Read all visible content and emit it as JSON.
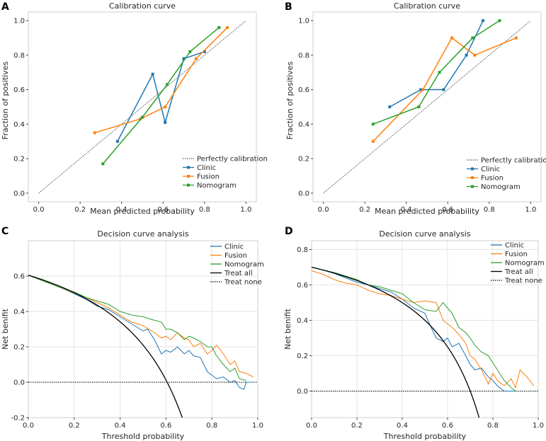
{
  "colors": {
    "clinic": "#1f77b4",
    "fusion": "#ff7f0e",
    "nomogram": "#2ca02c",
    "treat_all": "#000000",
    "treat_none": "#000000",
    "diagonal": "#555555",
    "grid": "#e5e5e5",
    "frame": "#cfcfcf"
  },
  "chart_data": [
    {
      "panel": "A",
      "type": "line",
      "title": "Calibration curve",
      "xlabel": "Mean predicted probability",
      "ylabel": "Fraction of positives",
      "xlim": [
        -0.05,
        1.05
      ],
      "ylim": [
        -0.05,
        1.05
      ],
      "xticks": [
        "0.0",
        "0.2",
        "0.4",
        "0.6",
        "0.8",
        "1.0"
      ],
      "yticks": [
        "0.0",
        "0.2",
        "0.4",
        "0.6",
        "0.8",
        "1.0"
      ],
      "grid": false,
      "legend_position": "bottom-right",
      "legend": [
        "Perfectly calibration",
        "Clinic",
        "Fusion",
        "Nomogram"
      ],
      "diagonal": {
        "name": "Perfectly calibration",
        "x": [
          0,
          1
        ],
        "y": [
          0,
          1
        ]
      },
      "series": [
        {
          "name": "Clinic",
          "key": "clinic",
          "x": [
            0.38,
            0.55,
            0.61,
            0.7,
            0.8
          ],
          "y": [
            0.3,
            0.69,
            0.41,
            0.78,
            0.82
          ]
        },
        {
          "name": "Fusion",
          "key": "fusion",
          "x": [
            0.27,
            0.49,
            0.61,
            0.76,
            0.91
          ],
          "y": [
            0.35,
            0.43,
            0.5,
            0.78,
            0.96
          ]
        },
        {
          "name": "Nomogram",
          "key": "nomogram",
          "x": [
            0.31,
            0.5,
            0.62,
            0.73,
            0.87
          ],
          "y": [
            0.17,
            0.44,
            0.63,
            0.82,
            0.96
          ]
        }
      ]
    },
    {
      "panel": "B",
      "type": "line",
      "title": "Calibration curve",
      "xlabel": "Mean predicted probability",
      "ylabel": "Fraction of positives",
      "xlim": [
        -0.05,
        1.05
      ],
      "ylim": [
        -0.05,
        1.05
      ],
      "xticks": [
        "0.0",
        "0.2",
        "0.4",
        "0.6",
        "0.8",
        "1.0"
      ],
      "yticks": [
        "0.0",
        "0.2",
        "0.4",
        "0.6",
        "0.8",
        "1.0"
      ],
      "grid": false,
      "legend_position": "bottom-right",
      "legend": [
        "Perfectly calibration",
        "Clinic",
        "Fusion",
        "Nomogram"
      ],
      "diagonal": {
        "name": "Perfectly calibration",
        "x": [
          0,
          1
        ],
        "y": [
          0,
          1
        ]
      },
      "series": [
        {
          "name": "Clinic",
          "key": "clinic",
          "x": [
            0.32,
            0.47,
            0.58,
            0.69,
            0.77
          ],
          "y": [
            0.5,
            0.6,
            0.6,
            0.8,
            1.0
          ]
        },
        {
          "name": "Fusion",
          "key": "fusion",
          "x": [
            0.24,
            0.48,
            0.62,
            0.73,
            0.93
          ],
          "y": [
            0.3,
            0.6,
            0.9,
            0.8,
            0.9
          ]
        },
        {
          "name": "Nomogram",
          "key": "nomogram",
          "x": [
            0.24,
            0.46,
            0.56,
            0.72,
            0.85
          ],
          "y": [
            0.4,
            0.5,
            0.7,
            0.9,
            1.0
          ]
        }
      ]
    },
    {
      "panel": "C",
      "type": "line",
      "title": "Decision curve analysis",
      "xlabel": "Threshold probability",
      "ylabel": "Net benifit",
      "xlim": [
        0,
        1
      ],
      "ylim": [
        -0.2,
        0.8
      ],
      "xticks": [
        "0.0",
        "0.2",
        "0.4",
        "0.6",
        "0.8",
        "1.0"
      ],
      "yticks": [
        "-0.2",
        "0.0",
        "0.2",
        "0.4",
        "0.6"
      ],
      "ytick_values": [
        -0.2,
        0,
        0.2,
        0.4,
        0.6
      ],
      "grid": true,
      "legend_position": "top-right",
      "legend": [
        "Clinic",
        "Fusion",
        "Nomogram",
        "Treat all",
        "Treat none"
      ],
      "prevalence": 0.605,
      "series": [
        {
          "name": "Clinic",
          "key": "clinic",
          "x": [
            0,
            0.05,
            0.1,
            0.15,
            0.2,
            0.25,
            0.3,
            0.35,
            0.4,
            0.45,
            0.5,
            0.52,
            0.55,
            0.58,
            0.6,
            0.62,
            0.65,
            0.68,
            0.7,
            0.72,
            0.75,
            0.78,
            0.8,
            0.82,
            0.85,
            0.88,
            0.9,
            0.92,
            0.94,
            0.95,
            0.97
          ],
          "y": [
            0.605,
            0.58,
            0.555,
            0.53,
            0.5,
            0.47,
            0.43,
            0.41,
            0.37,
            0.33,
            0.29,
            0.3,
            0.24,
            0.16,
            0.18,
            0.17,
            0.2,
            0.16,
            0.18,
            0.15,
            0.14,
            0.06,
            0.04,
            0.02,
            0.03,
            0.0,
            0.01,
            -0.03,
            -0.04,
            0.0,
            0.0
          ]
        },
        {
          "name": "Fusion",
          "key": "fusion",
          "x": [
            0,
            0.05,
            0.1,
            0.15,
            0.2,
            0.25,
            0.3,
            0.35,
            0.4,
            0.45,
            0.5,
            0.55,
            0.58,
            0.6,
            0.62,
            0.65,
            0.68,
            0.7,
            0.72,
            0.75,
            0.78,
            0.8,
            0.82,
            0.85,
            0.88,
            0.9,
            0.92,
            0.95,
            0.98
          ],
          "y": [
            0.605,
            0.58,
            0.555,
            0.53,
            0.505,
            0.48,
            0.45,
            0.42,
            0.38,
            0.34,
            0.32,
            0.28,
            0.25,
            0.26,
            0.24,
            0.28,
            0.25,
            0.24,
            0.2,
            0.22,
            0.16,
            0.18,
            0.21,
            0.16,
            0.1,
            0.12,
            0.06,
            0.05,
            0.03
          ]
        },
        {
          "name": "Nomogram",
          "key": "nomogram",
          "x": [
            0,
            0.05,
            0.1,
            0.15,
            0.2,
            0.25,
            0.3,
            0.35,
            0.4,
            0.45,
            0.5,
            0.55,
            0.58,
            0.6,
            0.62,
            0.65,
            0.68,
            0.7,
            0.72,
            0.75,
            0.78,
            0.8,
            0.82,
            0.85,
            0.88,
            0.9,
            0.92,
            0.95
          ],
          "y": [
            0.605,
            0.58,
            0.555,
            0.53,
            0.51,
            0.48,
            0.46,
            0.44,
            0.4,
            0.38,
            0.37,
            0.35,
            0.34,
            0.3,
            0.3,
            0.28,
            0.24,
            0.26,
            0.25,
            0.23,
            0.2,
            0.2,
            0.15,
            0.1,
            0.06,
            0.08,
            0.02,
            0.01
          ]
        }
      ]
    },
    {
      "panel": "D",
      "type": "line",
      "title": "Decision curve analysis",
      "xlabel": "Threshold probability",
      "ylabel": "Net benifit",
      "xlim": [
        0,
        1
      ],
      "ylim": [
        -0.15,
        0.85
      ],
      "xticks": [
        "0.0",
        "0.2",
        "0.4",
        "0.6",
        "0.8",
        "1.0"
      ],
      "yticks": [
        "0.0",
        "0.2",
        "0.4",
        "0.6",
        "0.8"
      ],
      "ytick_values": [
        0,
        0.2,
        0.4,
        0.6,
        0.8
      ],
      "grid": true,
      "legend_position": "top-right",
      "legend": [
        "Clinic",
        "Fusion",
        "Nomogram",
        "Treat all",
        "Treat none"
      ],
      "prevalence": 0.7,
      "series": [
        {
          "name": "Clinic",
          "key": "clinic",
          "x": [
            0,
            0.05,
            0.1,
            0.15,
            0.2,
            0.25,
            0.3,
            0.35,
            0.4,
            0.45,
            0.5,
            0.52,
            0.55,
            0.58,
            0.6,
            0.62,
            0.65,
            0.68,
            0.7,
            0.72,
            0.75,
            0.78,
            0.8,
            0.82,
            0.85,
            0.88,
            0.9
          ],
          "y": [
            0.7,
            0.685,
            0.665,
            0.64,
            0.615,
            0.6,
            0.58,
            0.56,
            0.52,
            0.47,
            0.44,
            0.38,
            0.3,
            0.28,
            0.3,
            0.25,
            0.27,
            0.2,
            0.15,
            0.12,
            0.13,
            0.08,
            0.06,
            0.03,
            0.0,
            0.0,
            0.0
          ]
        },
        {
          "name": "Fusion",
          "key": "fusion",
          "x": [
            0,
            0.05,
            0.1,
            0.15,
            0.2,
            0.25,
            0.3,
            0.35,
            0.4,
            0.45,
            0.5,
            0.55,
            0.58,
            0.6,
            0.62,
            0.65,
            0.68,
            0.7,
            0.72,
            0.75,
            0.78,
            0.8,
            0.82,
            0.85,
            0.88,
            0.9,
            0.92,
            0.95,
            0.98
          ],
          "y": [
            0.68,
            0.66,
            0.63,
            0.61,
            0.6,
            0.57,
            0.55,
            0.54,
            0.52,
            0.5,
            0.51,
            0.5,
            0.4,
            0.38,
            0.36,
            0.32,
            0.27,
            0.2,
            0.18,
            0.12,
            0.04,
            0.1,
            0.06,
            0.03,
            0.07,
            0.02,
            0.12,
            0.08,
            0.03
          ]
        },
        {
          "name": "Nomogram",
          "key": "nomogram",
          "x": [
            0,
            0.05,
            0.1,
            0.15,
            0.2,
            0.25,
            0.3,
            0.35,
            0.4,
            0.45,
            0.5,
            0.55,
            0.58,
            0.6,
            0.62,
            0.65,
            0.68,
            0.7,
            0.72,
            0.75,
            0.78,
            0.8,
            0.82,
            0.85,
            0.88,
            0.9
          ],
          "y": [
            0.7,
            0.685,
            0.67,
            0.65,
            0.63,
            0.6,
            0.59,
            0.57,
            0.55,
            0.5,
            0.46,
            0.45,
            0.5,
            0.47,
            0.44,
            0.36,
            0.33,
            0.3,
            0.26,
            0.22,
            0.2,
            0.16,
            0.12,
            0.06,
            0.02,
            0.0
          ]
        }
      ]
    }
  ]
}
